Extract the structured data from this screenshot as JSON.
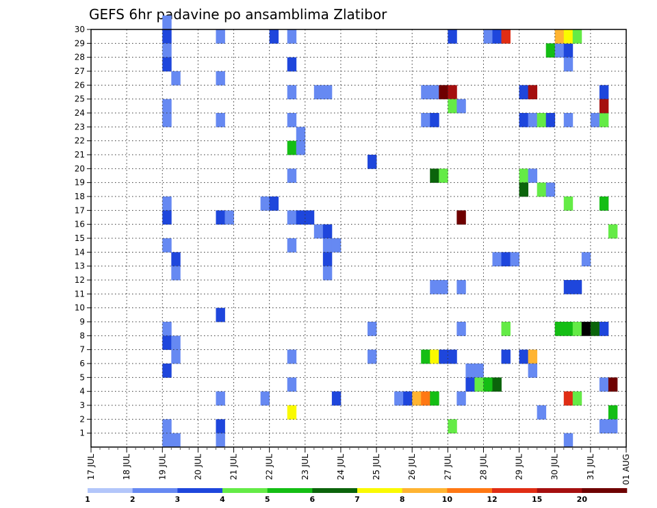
{
  "chart_data": {
    "type": "heatmap",
    "title": "GEFS 6hr padavine po ansamblima Zlatibor",
    "xlabel": "",
    "ylabel": "",
    "x_tick_labels": [
      "17 JUL",
      "18 JUL",
      "19 JUL",
      "20 JUL",
      "21 JUL",
      "22 JUL",
      "23 JUL",
      "24 JUL",
      "25 JUL",
      "26 JUL",
      "27 JUL",
      "28 JUL",
      "29 JUL",
      "30 JUL",
      "31 JUL",
      "01 AUG"
    ],
    "xlim": [
      0,
      60
    ],
    "x_unit": "6-hour steps from 17 JUL 00Z",
    "y_ticks": [
      1,
      2,
      3,
      4,
      5,
      6,
      7,
      8,
      9,
      10,
      11,
      12,
      13,
      14,
      15,
      16,
      17,
      18,
      19,
      20,
      21,
      22,
      23,
      24,
      25,
      26,
      27,
      28,
      29,
      30
    ],
    "ylim": [
      0,
      30
    ],
    "grid": true,
    "colorbar": {
      "placement": "bottom",
      "boundaries": [
        1,
        2,
        3,
        4,
        5,
        6,
        7,
        8,
        10,
        12,
        15,
        20
      ],
      "labels": [
        "1",
        "2",
        "3",
        "4",
        "5",
        "6",
        "7",
        "8",
        "10",
        "12",
        "15",
        "20"
      ],
      "colors": [
        "#b3c6fa",
        "#6689f2",
        "#1e46dc",
        "#64eb46",
        "#14be14",
        "#0b640b",
        "#fafa00",
        "#ffb432",
        "#ff7814",
        "#e02d14",
        "#a50f0f",
        "#6e0000"
      ]
    },
    "cells": [
      [
        8,
        30,
        1
      ],
      [
        8,
        29,
        2
      ],
      [
        8,
        28,
        1
      ],
      [
        8,
        27,
        2
      ],
      [
        9,
        26,
        1
      ],
      [
        8,
        24,
        1
      ],
      [
        8,
        23,
        1
      ],
      [
        8,
        17,
        1
      ],
      [
        8,
        16,
        2
      ],
      [
        8,
        14,
        1
      ],
      [
        9,
        13,
        2
      ],
      [
        9,
        12,
        1
      ],
      [
        8,
        8,
        1
      ],
      [
        8,
        7,
        2
      ],
      [
        9,
        7,
        1
      ],
      [
        9,
        6,
        1
      ],
      [
        8,
        5,
        2
      ],
      [
        8,
        1,
        1
      ],
      [
        8,
        0,
        1
      ],
      [
        9,
        0,
        1
      ],
      [
        14,
        29,
        1
      ],
      [
        14,
        26,
        1
      ],
      [
        14,
        23,
        1
      ],
      [
        14,
        16,
        2
      ],
      [
        15,
        16,
        1
      ],
      [
        14,
        9,
        2
      ],
      [
        14,
        3,
        1
      ],
      [
        14,
        1,
        2
      ],
      [
        14,
        0,
        1
      ],
      [
        19,
        17,
        1
      ],
      [
        20,
        17,
        2
      ],
      [
        19,
        3,
        1
      ],
      [
        20,
        29,
        2
      ],
      [
        22,
        29,
        1
      ],
      [
        22,
        25,
        1
      ],
      [
        22,
        23,
        1
      ],
      [
        22,
        21,
        4
      ],
      [
        23,
        21,
        1
      ],
      [
        23,
        22,
        1
      ],
      [
        22,
        27,
        2
      ],
      [
        22,
        19,
        1
      ],
      [
        22,
        16,
        1
      ],
      [
        23,
        16,
        2
      ],
      [
        24,
        16,
        2
      ],
      [
        22,
        14,
        1
      ],
      [
        22,
        6,
        1
      ],
      [
        22,
        4,
        1
      ],
      [
        22,
        2,
        6
      ],
      [
        25,
        25,
        1
      ],
      [
        26,
        25,
        1
      ],
      [
        25,
        15,
        1
      ],
      [
        26,
        15,
        2
      ],
      [
        26,
        14,
        1
      ],
      [
        26,
        13,
        2
      ],
      [
        27,
        14,
        1
      ],
      [
        26,
        12,
        1
      ],
      [
        27,
        3,
        2
      ],
      [
        31,
        20,
        2
      ],
      [
        31,
        8,
        1
      ],
      [
        31,
        6,
        1
      ],
      [
        34,
        3,
        1
      ],
      [
        35,
        3,
        2
      ],
      [
        36,
        3,
        7
      ],
      [
        37,
        3,
        8
      ],
      [
        38,
        3,
        4
      ],
      [
        37,
        6,
        4
      ],
      [
        38,
        6,
        6
      ],
      [
        39,
        6,
        2
      ],
      [
        40,
        6,
        2
      ],
      [
        37,
        25,
        1
      ],
      [
        38,
        25,
        1
      ],
      [
        39,
        25,
        11
      ],
      [
        40,
        25,
        10
      ],
      [
        40,
        24,
        3
      ],
      [
        41,
        24,
        1
      ],
      [
        37,
        23,
        1
      ],
      [
        38,
        23,
        2
      ],
      [
        38,
        19,
        5
      ],
      [
        39,
        19,
        3
      ],
      [
        38,
        11,
        1
      ],
      [
        39,
        11,
        1
      ],
      [
        40,
        29,
        2
      ],
      [
        40,
        1,
        3
      ],
      [
        41,
        16,
        11
      ],
      [
        41,
        11,
        1
      ],
      [
        41,
        8,
        1
      ],
      [
        41,
        3,
        1
      ],
      [
        42,
        5,
        1
      ],
      [
        43,
        5,
        1
      ],
      [
        42,
        4,
        2
      ],
      [
        43,
        4,
        3
      ],
      [
        44,
        4,
        4
      ],
      [
        45,
        4,
        5
      ],
      [
        44,
        29,
        1
      ],
      [
        45,
        29,
        2
      ],
      [
        46,
        29,
        9
      ],
      [
        45,
        13,
        1
      ],
      [
        46,
        13,
        2
      ],
      [
        47,
        13,
        1
      ],
      [
        46,
        6,
        2
      ],
      [
        46,
        8,
        3
      ],
      [
        48,
        25,
        2
      ],
      [
        49,
        25,
        10
      ],
      [
        48,
        23,
        2
      ],
      [
        49,
        23,
        1
      ],
      [
        50,
        23,
        3
      ],
      [
        51,
        23,
        2
      ],
      [
        48,
        19,
        3
      ],
      [
        49,
        19,
        1
      ],
      [
        48,
        18,
        5
      ],
      [
        48,
        6,
        2
      ],
      [
        49,
        6,
        7
      ],
      [
        49,
        5,
        1
      ],
      [
        50,
        18,
        3
      ],
      [
        51,
        18,
        1
      ],
      [
        50,
        2,
        1
      ],
      [
        51,
        28,
        4
      ],
      [
        52,
        28,
        1
      ],
      [
        53,
        28,
        2
      ],
      [
        53,
        27,
        1
      ],
      [
        53,
        23,
        1
      ],
      [
        53,
        17,
        3
      ],
      [
        53,
        11,
        2
      ],
      [
        54,
        11,
        2
      ],
      [
        53,
        0,
        1
      ],
      [
        52,
        29,
        7
      ],
      [
        53,
        29,
        6
      ],
      [
        54,
        29,
        3
      ],
      [
        53,
        8,
        4
      ],
      [
        52,
        8,
        4
      ],
      [
        54,
        8,
        3
      ],
      [
        55,
        8,
        12
      ],
      [
        56,
        8,
        5
      ],
      [
        57,
        8,
        2
      ],
      [
        53,
        3,
        9
      ],
      [
        54,
        3,
        3
      ],
      [
        55,
        13,
        1
      ],
      [
        56,
        23,
        1
      ],
      [
        57,
        23,
        3
      ],
      [
        57,
        25,
        2
      ],
      [
        57,
        24,
        10
      ],
      [
        57,
        17,
        4
      ],
      [
        58,
        15,
        3
      ],
      [
        57,
        4,
        1
      ],
      [
        58,
        4,
        11
      ],
      [
        58,
        2,
        4
      ],
      [
        57,
        1,
        1
      ],
      [
        58,
        1,
        1
      ]
    ]
  }
}
